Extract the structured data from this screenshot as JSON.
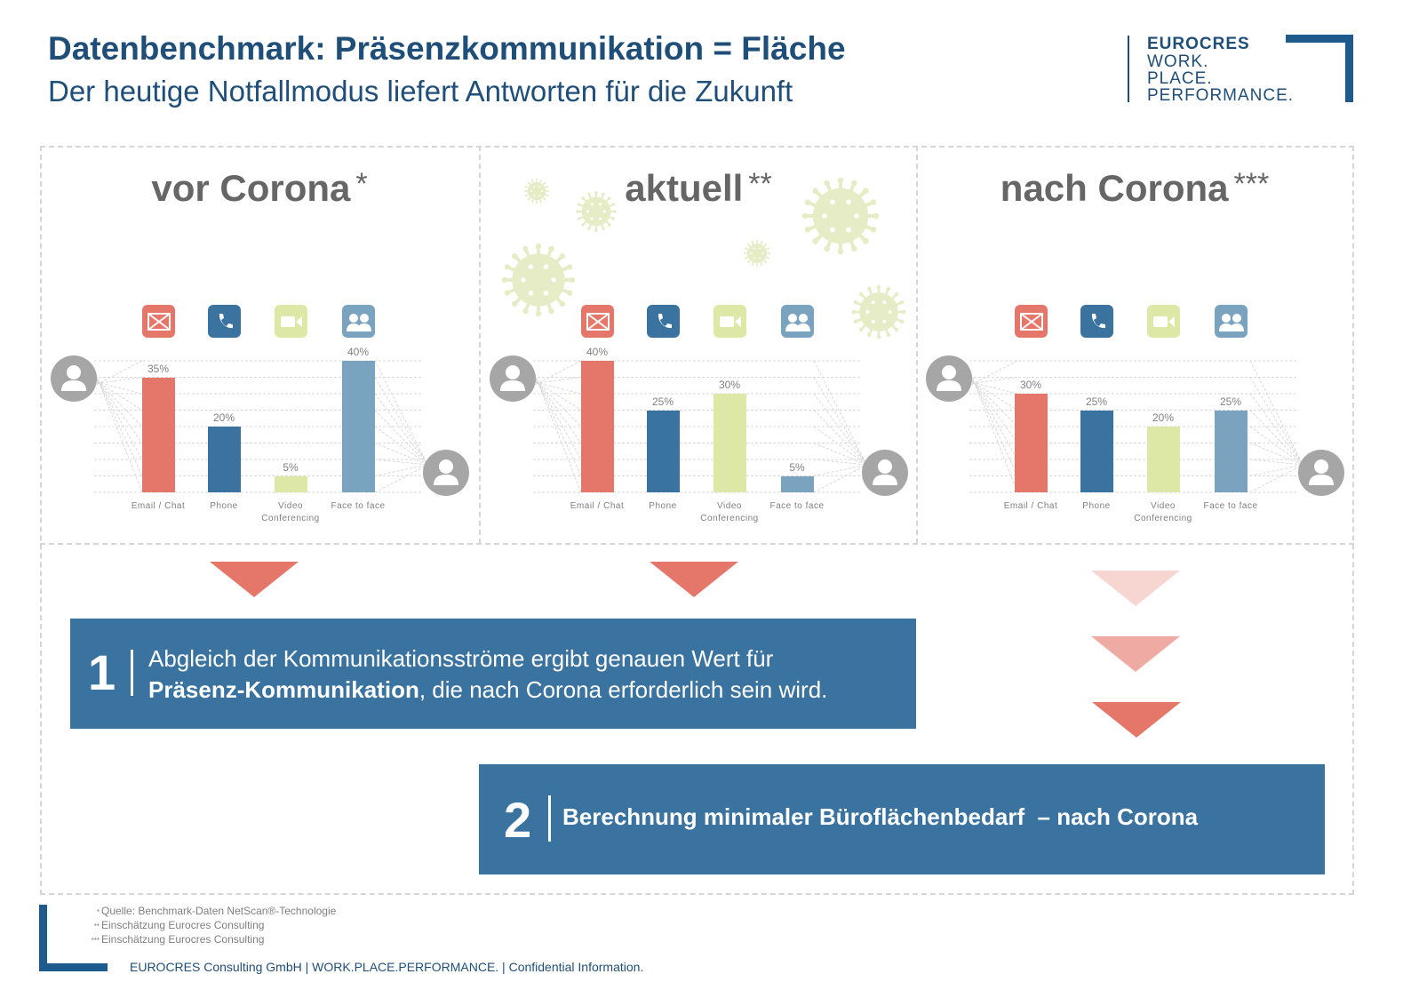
{
  "header": {
    "title": "Datenbenchmark: Präsenzkommunikation = Fläche",
    "subtitle": "Der heutige Notfallmodus liefert Antworten für die Zukunft"
  },
  "logo": {
    "line1": "EUROCRES",
    "line2": "WORK.",
    "line3": "PLACE.",
    "line4": "PERFORMANCE."
  },
  "colors": {
    "email": "#e5776a",
    "phone": "#3b73a0",
    "video": "#dde8a6",
    "face": "#7aa3c0",
    "box": "#3a73a0",
    "brand": "#1f4e79"
  },
  "chart_data": [
    {
      "type": "bar",
      "title": "vor Corona",
      "title_mark": "*",
      "categories": [
        "Email  / Chat",
        "Phone",
        "Video Conferencing",
        "Face to face"
      ],
      "values": [
        35,
        20,
        5,
        40
      ],
      "value_labels": [
        "35%",
        "20%",
        "5%",
        "40%"
      ],
      "ylim": [
        0,
        40
      ],
      "grid": true
    },
    {
      "type": "bar",
      "title": "aktuell",
      "title_mark": "**",
      "categories": [
        "Email  / Chat",
        "Phone",
        "Video Conferencing",
        "Face to face"
      ],
      "values": [
        40,
        25,
        30,
        5
      ],
      "value_labels": [
        "40%",
        "25%",
        "30%",
        "5%"
      ],
      "ylim": [
        0,
        40
      ],
      "grid": true
    },
    {
      "type": "bar",
      "title": "nach Corona",
      "title_mark": "***",
      "categories": [
        "Email  / Chat",
        "Phone",
        "Video Conferencing",
        "Face to face"
      ],
      "values": [
        30,
        25,
        20,
        25
      ],
      "value_labels": [
        "30%",
        "25%",
        "20%",
        "25%"
      ],
      "ylim": [
        0,
        40
      ],
      "grid": true
    }
  ],
  "icons": [
    "email-icon",
    "phone-icon",
    "video-icon",
    "face-to-face-icon"
  ],
  "step1": {
    "number": "1",
    "text_line1": "Abgleich der Kommunikationsströme ergibt genauen Wert für",
    "bold": "Präsenz-Kommunikation",
    "text_rest": ", die nach Corona erforderlich sein wird."
  },
  "step2": {
    "number": "2",
    "text": "Berechnung minimaler Büroflächenbedarf  – nach Corona"
  },
  "footnotes": [
    {
      "mark": "*",
      "text": "Quelle: Benchmark-Daten NetScan®-Technologie"
    },
    {
      "mark": "**",
      "text": "Einschätzung Eurocres Consulting"
    },
    {
      "mark": "***",
      "text": "Einschätzung Eurocres Consulting"
    }
  ],
  "footer": "EUROCRES Consulting GmbH | WORK.PLACE.PERFORMANCE. | Confidential Information."
}
